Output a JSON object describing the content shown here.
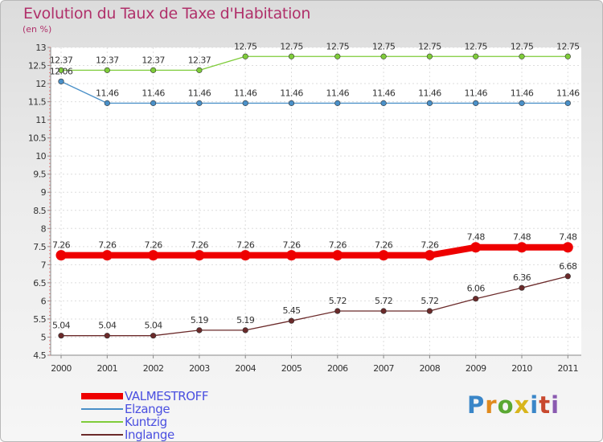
{
  "title": "Evolution du Taux de Taxe d'Habitation",
  "unit_label": "(en %)",
  "logo": {
    "text": "Proxiti",
    "colors": [
      "#3a86c8",
      "#e08a1e",
      "#5aa832",
      "#d8b51c",
      "#3a86c8",
      "#c8482e",
      "#8a5ab0"
    ]
  },
  "chart_data": {
    "type": "line",
    "title": "Evolution du Taux de Taxe d'Habitation",
    "ylabel": "(en %)",
    "xlabel": "",
    "categories": [
      "2000",
      "2001",
      "2002",
      "2003",
      "2004",
      "2005",
      "2006",
      "2007",
      "2008",
      "2009",
      "2010",
      "2011"
    ],
    "ylim": [
      4.5,
      13
    ],
    "yticks": [
      "4.5",
      "5",
      "5.5",
      "6",
      "6.5",
      "7",
      "7.5",
      "8",
      "8.5",
      "9",
      "9.5",
      "10",
      "10.5",
      "11",
      "11.5",
      "12",
      "12.5",
      "13"
    ],
    "legend_position": "bottom-left",
    "series": [
      {
        "name": "VALMESTROFF",
        "color": "#ee0000",
        "emphasis": "thick",
        "values": [
          7.26,
          7.26,
          7.26,
          7.26,
          7.26,
          7.26,
          7.26,
          7.26,
          7.26,
          7.48,
          7.48,
          7.48
        ],
        "labels": [
          "7.26",
          "7.26",
          "7.26",
          "7.26",
          "7.26",
          "7.26",
          "7.26",
          "7.26",
          "7.26",
          "7.48",
          "7.48",
          "7.48"
        ]
      },
      {
        "name": "Elzange",
        "color": "#4a90c8",
        "emphasis": "normal",
        "values": [
          12.06,
          11.46,
          11.46,
          11.46,
          11.46,
          11.46,
          11.46,
          11.46,
          11.46,
          11.46,
          11.46,
          11.46
        ],
        "labels": [
          "12.06",
          "11.46",
          "11.46",
          "11.46",
          "11.46",
          "11.46",
          "11.46",
          "11.46",
          "11.46",
          "11.46",
          "11.46",
          "11.46"
        ]
      },
      {
        "name": "Kuntzig",
        "color": "#7fcc3a",
        "emphasis": "normal",
        "values": [
          12.37,
          12.37,
          12.37,
          12.37,
          12.75,
          12.75,
          12.75,
          12.75,
          12.75,
          12.75,
          12.75,
          12.75
        ],
        "labels": [
          "12.37",
          "12.37",
          "12.37",
          "12.37",
          "12.75",
          "12.75",
          "12.75",
          "12.75",
          "12.75",
          "12.75",
          "12.75",
          "12.75"
        ]
      },
      {
        "name": "Inglange",
        "color": "#6b2a2a",
        "emphasis": "normal",
        "values": [
          5.04,
          5.04,
          5.04,
          5.19,
          5.19,
          5.45,
          5.72,
          5.72,
          5.72,
          6.06,
          6.36,
          6.68
        ],
        "labels": [
          "5.04",
          "5.04",
          "5.04",
          "5.19",
          "5.19",
          "5.45",
          "5.72",
          "5.72",
          "5.72",
          "6.06",
          "6.36",
          "6.68"
        ]
      }
    ]
  }
}
